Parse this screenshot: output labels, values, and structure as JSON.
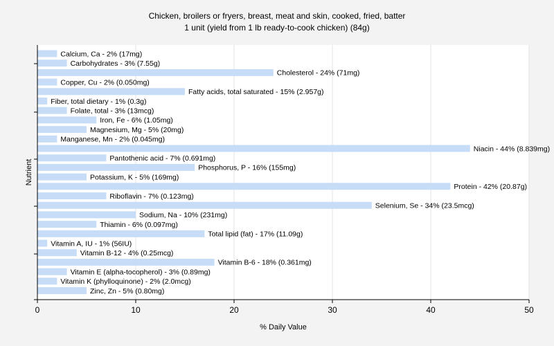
{
  "chart_data": {
    "type": "bar",
    "orientation": "horizontal",
    "title": "Chicken, broilers or fryers, breast, meat and skin, cooked, fried, batter",
    "subtitle": "1 unit (yield from 1 lb ready-to-cook chicken) (84g)",
    "xlabel": "% Daily Value",
    "ylabel": "Nutrient",
    "xlim": [
      0,
      50
    ],
    "xticks": [
      0,
      10,
      20,
      30,
      40,
      50
    ],
    "grid": true,
    "bar_color": "#c6dcf7",
    "categories": [
      "Calcium, Ca",
      "Carbohydrates",
      "Cholesterol",
      "Copper, Cu",
      "Fatty acids, total saturated",
      "Fiber, total dietary",
      "Folate, total",
      "Iron, Fe",
      "Magnesium, Mg",
      "Manganese, Mn",
      "Niacin",
      "Pantothenic acid",
      "Phosphorus, P",
      "Potassium, K",
      "Protein",
      "Riboflavin",
      "Selenium, Se",
      "Sodium, Na",
      "Thiamin",
      "Total lipid (fat)",
      "Vitamin A, IU",
      "Vitamin B-12",
      "Vitamin B-6",
      "Vitamin E (alpha-tocopherol)",
      "Vitamin K (phylloquinone)",
      "Zinc, Zn"
    ],
    "values": [
      2,
      3,
      24,
      2,
      15,
      1,
      3,
      6,
      5,
      2,
      44,
      7,
      16,
      5,
      42,
      7,
      34,
      10,
      6,
      17,
      1,
      4,
      18,
      3,
      2,
      5
    ],
    "labels": [
      "Calcium, Ca - 2% (17mg)",
      "Carbohydrates - 3% (7.55g)",
      "Cholesterol - 24% (71mg)",
      "Copper, Cu - 2% (0.050mg)",
      "Fatty acids, total saturated - 15% (2.957g)",
      "Fiber, total dietary - 1% (0.3g)",
      "Folate, total - 3% (13mcg)",
      "Iron, Fe - 6% (1.05mg)",
      "Magnesium, Mg - 5% (20mg)",
      "Manganese, Mn - 2% (0.045mg)",
      "Niacin - 44% (8.839mg)",
      "Pantothenic acid - 7% (0.691mg)",
      "Phosphorus, P - 16% (155mg)",
      "Potassium, K - 5% (169mg)",
      "Protein - 42% (20.87g)",
      "Riboflavin - 7% (0.123mg)",
      "Selenium, Se - 34% (23.5mcg)",
      "Sodium, Na - 10% (231mg)",
      "Thiamin - 6% (0.097mg)",
      "Total lipid (fat) - 17% (11.09g)",
      "Vitamin A, IU - 1% (56IU)",
      "Vitamin B-12 - 4% (0.25mcg)",
      "Vitamin B-6 - 18% (0.361mg)",
      "Vitamin E (alpha-tocopherol) - 3% (0.89mg)",
      "Vitamin K (phylloquinone) - 2% (2.0mcg)",
      "Zinc, Zn - 5% (0.80mg)"
    ]
  }
}
